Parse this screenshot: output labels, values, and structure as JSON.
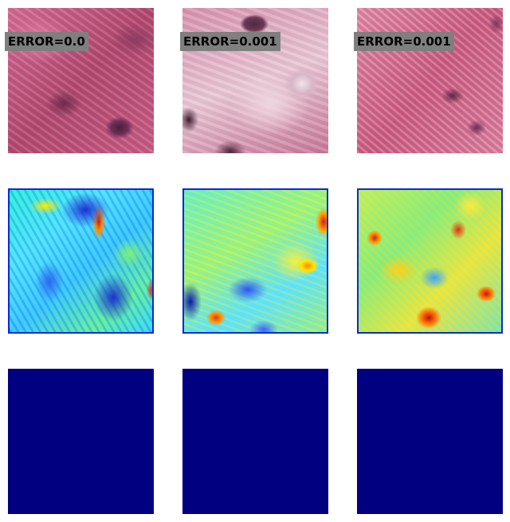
{
  "columns": [
    {
      "error_label": "ERROR=0.0"
    },
    {
      "error_label": "ERROR=0.001"
    },
    {
      "error_label": "ERROR=0.001"
    }
  ],
  "colors": {
    "background": "#ffffff",
    "label_box": "#7f7f7f",
    "bottom_row_fill": "#000080"
  }
}
